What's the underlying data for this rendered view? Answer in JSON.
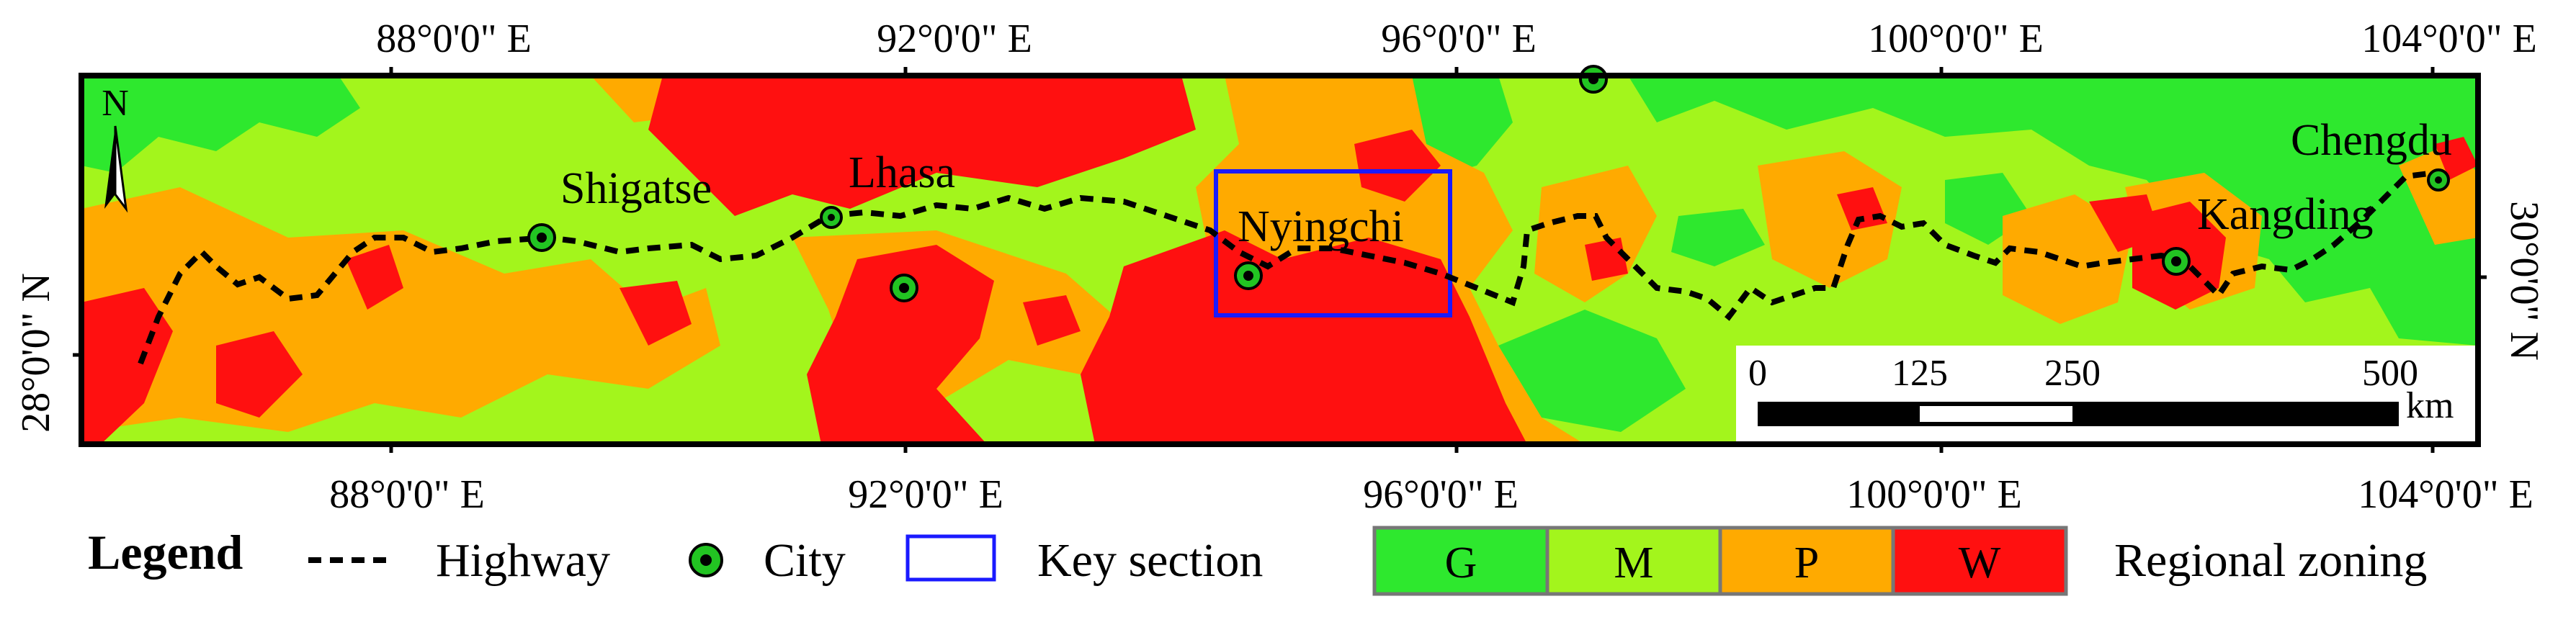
{
  "map": {
    "axes": {
      "top_labels": [
        "88°0'0\" E",
        "92°0'0\" E",
        "96°0'0\" E",
        "100°0'0\" E",
        "104°0'0\" E"
      ],
      "bottom_labels": [
        "88°0'0\" E",
        "92°0'0\" E",
        "96°0'0\" E",
        "100°0'0\" E",
        "104°0'0\" E"
      ],
      "left_label": "28°0'0\" N",
      "right_label": "30°0'0\" N"
    },
    "north_arrow": "N",
    "cities": [
      {
        "name": "Shigatse"
      },
      {
        "name": "Lhasa"
      },
      {
        "name": "Nyingchi"
      },
      {
        "name": "Kangding"
      },
      {
        "name": "Chengdu"
      }
    ],
    "scale_bar": {
      "ticks": [
        "0",
        "125",
        "250",
        "500"
      ],
      "unit": "km"
    }
  },
  "legend": {
    "title": "Legend",
    "items": {
      "highway": "Highway",
      "city": "City",
      "key_section": "Key section",
      "regional_zoning": "Regional zoning"
    },
    "zones": [
      {
        "code": "G",
        "color": "#2ee82e"
      },
      {
        "code": "M",
        "color": "#a3f51c"
      },
      {
        "code": "P",
        "color": "#ffaa00"
      },
      {
        "code": "W",
        "color": "#ff1010"
      }
    ]
  },
  "colors": {
    "highway": "#000000",
    "city_fill": "#22c422",
    "key_section": "#1a1aff",
    "frame": "#000000"
  }
}
